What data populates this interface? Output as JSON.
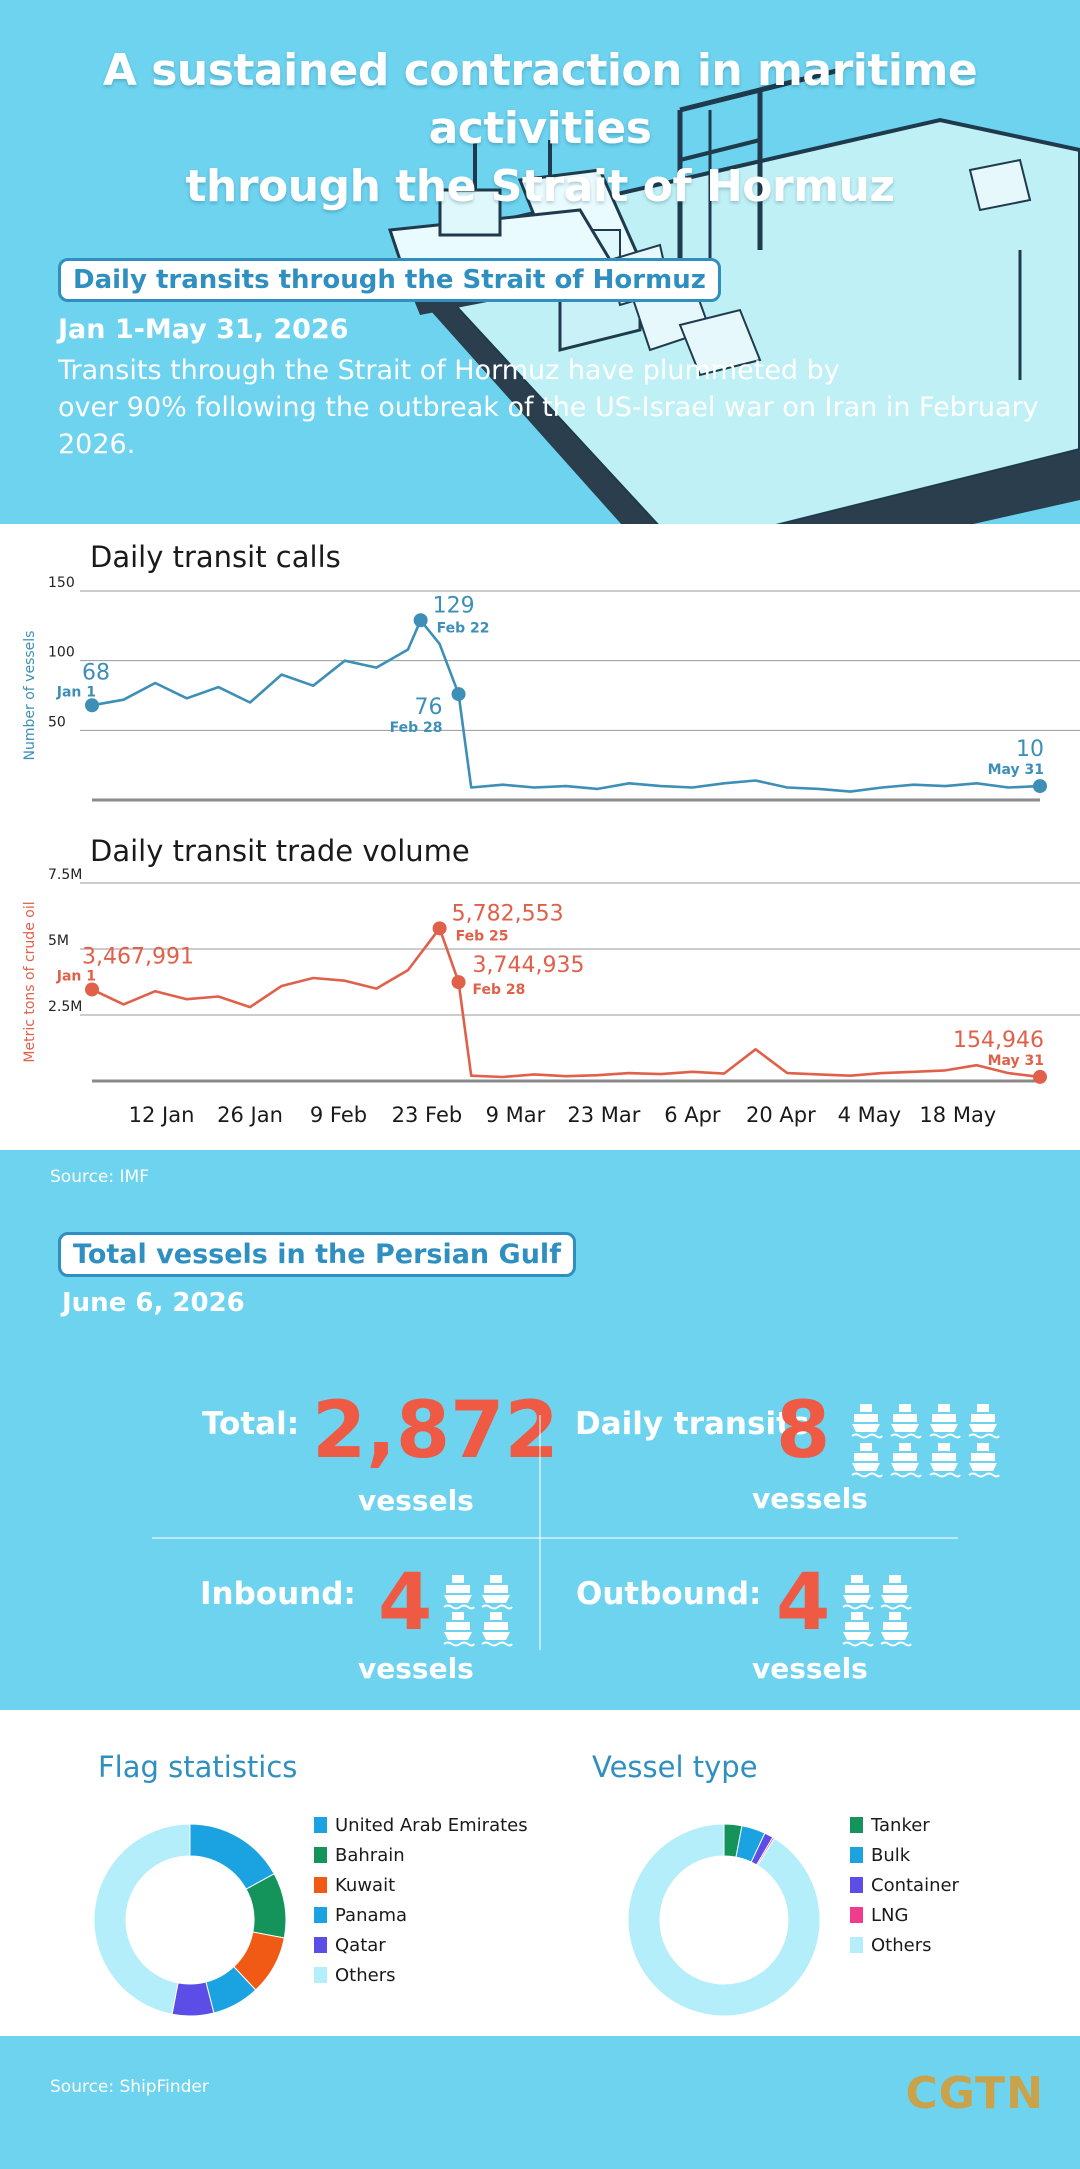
{
  "header": {
    "title_line1": "A sustained contraction in maritime activities",
    "title_line2": "through the Strait of Hormuz",
    "section1_label": "Daily transits through the Strait of Hormuz",
    "date_range": "Jan 1-May 31, 2026",
    "desc_line1": "Transits through the Strait of Hormuz have plummeted by",
    "desc_line2": "over 90% following the outbreak of the US-Israel war on Iran in February 2026."
  },
  "chart_data": [
    {
      "type": "line",
      "title": "Daily transit calls",
      "ylabel": "Number of vessels",
      "ylim": [
        0,
        150
      ],
      "yticks": [
        "150",
        "100",
        "50"
      ],
      "color": "#3d8fb8",
      "x": [
        "Jan 1",
        "Jan 6",
        "Jan 11",
        "Jan 16",
        "Jan 21",
        "Jan 26",
        "Jan 31",
        "Feb 5",
        "Feb 10",
        "Feb 15",
        "Feb 20",
        "Feb 22",
        "Feb 25",
        "Feb 28",
        "Mar 2",
        "Mar 7",
        "Mar 12",
        "Mar 17",
        "Mar 22",
        "Mar 27",
        "Apr 1",
        "Apr 6",
        "Apr 11",
        "Apr 16",
        "Apr 21",
        "Apr 26",
        "May 1",
        "May 6",
        "May 11",
        "May 16",
        "May 21",
        "May 26",
        "May 31"
      ],
      "values": [
        68,
        72,
        84,
        73,
        81,
        70,
        90,
        82,
        100,
        95,
        108,
        129,
        112,
        76,
        9,
        11,
        9,
        10,
        8,
        12,
        10,
        9,
        12,
        14,
        9,
        8,
        6,
        9,
        11,
        10,
        12,
        9,
        10
      ],
      "annotations": [
        {
          "value": "68",
          "date": "Jan 1"
        },
        {
          "value": "129",
          "date": "Feb 22"
        },
        {
          "value": "76",
          "date": "Feb 28"
        },
        {
          "value": "10",
          "date": "May 31"
        }
      ]
    },
    {
      "type": "line",
      "title": "Daily transit trade volume",
      "ylabel": "Metric tons of crude oil",
      "ylim": [
        0,
        7500000
      ],
      "yticks": [
        "7.5M",
        "5M",
        "2.5M"
      ],
      "color": "#e0604a",
      "x": [
        "Jan 1",
        "Jan 6",
        "Jan 11",
        "Jan 16",
        "Jan 21",
        "Jan 26",
        "Jan 31",
        "Feb 5",
        "Feb 10",
        "Feb 15",
        "Feb 20",
        "Feb 25",
        "Feb 28",
        "Mar 2",
        "Mar 7",
        "Mar 12",
        "Mar 17",
        "Mar 22",
        "Mar 27",
        "Apr 1",
        "Apr 6",
        "Apr 11",
        "Apr 16",
        "Apr 21",
        "Apr 26",
        "May 1",
        "May 6",
        "May 11",
        "May 16",
        "May 21",
        "May 26",
        "May 31"
      ],
      "values": [
        3467991,
        2900000,
        3400000,
        3100000,
        3200000,
        2800000,
        3600000,
        3900000,
        3800000,
        3500000,
        4200000,
        5782553,
        3744935,
        200000,
        150000,
        250000,
        180000,
        220000,
        300000,
        260000,
        350000,
        280000,
        1200000,
        300000,
        250000,
        200000,
        300000,
        350000,
        400000,
        600000,
        300000,
        154946
      ],
      "annotations": [
        {
          "value": "3,467,991",
          "date": "Jan 1"
        },
        {
          "value": "5,782,553",
          "date": "Feb 25"
        },
        {
          "value": "3,744,935",
          "date": "Feb 28"
        },
        {
          "value": "154,946",
          "date": "May 31"
        }
      ],
      "xticks": [
        "12 Jan",
        "26 Jan",
        "9 Feb",
        "23 Feb",
        "9 Mar",
        "23 Mar",
        "6 Apr",
        "20 Apr",
        "4 May",
        "18 May"
      ]
    }
  ],
  "source1": "Source: IMF",
  "section2": {
    "label": "Total vessels in the Persian Gulf",
    "date": "June 6, 2026",
    "total_label": "Total:",
    "total_value": "2,872",
    "daily_label": "Daily transits:",
    "daily_value": "8",
    "inbound_label": "Inbound:",
    "inbound_value": "4",
    "outbound_label": "Outbound:",
    "outbound_value": "4",
    "unit": "vessels"
  },
  "flag_stats": {
    "title": "Flag statistics",
    "items": [
      {
        "label": "United Arab Emirates",
        "color": "#1aa3e0",
        "share": 17
      },
      {
        "label": "Bahrain",
        "color": "#14935a",
        "share": 11
      },
      {
        "label": "Kuwait",
        "color": "#f05a14",
        "share": 10
      },
      {
        "label": "Panama",
        "color": "#1aa3e0",
        "share": 8
      },
      {
        "label": "Qatar",
        "color": "#5b4de6",
        "share": 7
      },
      {
        "label": "Others",
        "color": "#b4eefa",
        "share": 47
      }
    ]
  },
  "vessel_type": {
    "title": "Vessel type",
    "items": [
      {
        "label": "Tanker",
        "color": "#14935a",
        "share": 3
      },
      {
        "label": "Bulk",
        "color": "#1aa3e0",
        "share": 4
      },
      {
        "label": "Container",
        "color": "#5b4de6",
        "share": 1.5
      },
      {
        "label": "LNG",
        "color": "#f03c8c",
        "share": 0.3
      },
      {
        "label": "Others",
        "color": "#b4eefa",
        "share": 91.2
      }
    ]
  },
  "source2": "Source: ShipFinder",
  "brand": "CGTN"
}
